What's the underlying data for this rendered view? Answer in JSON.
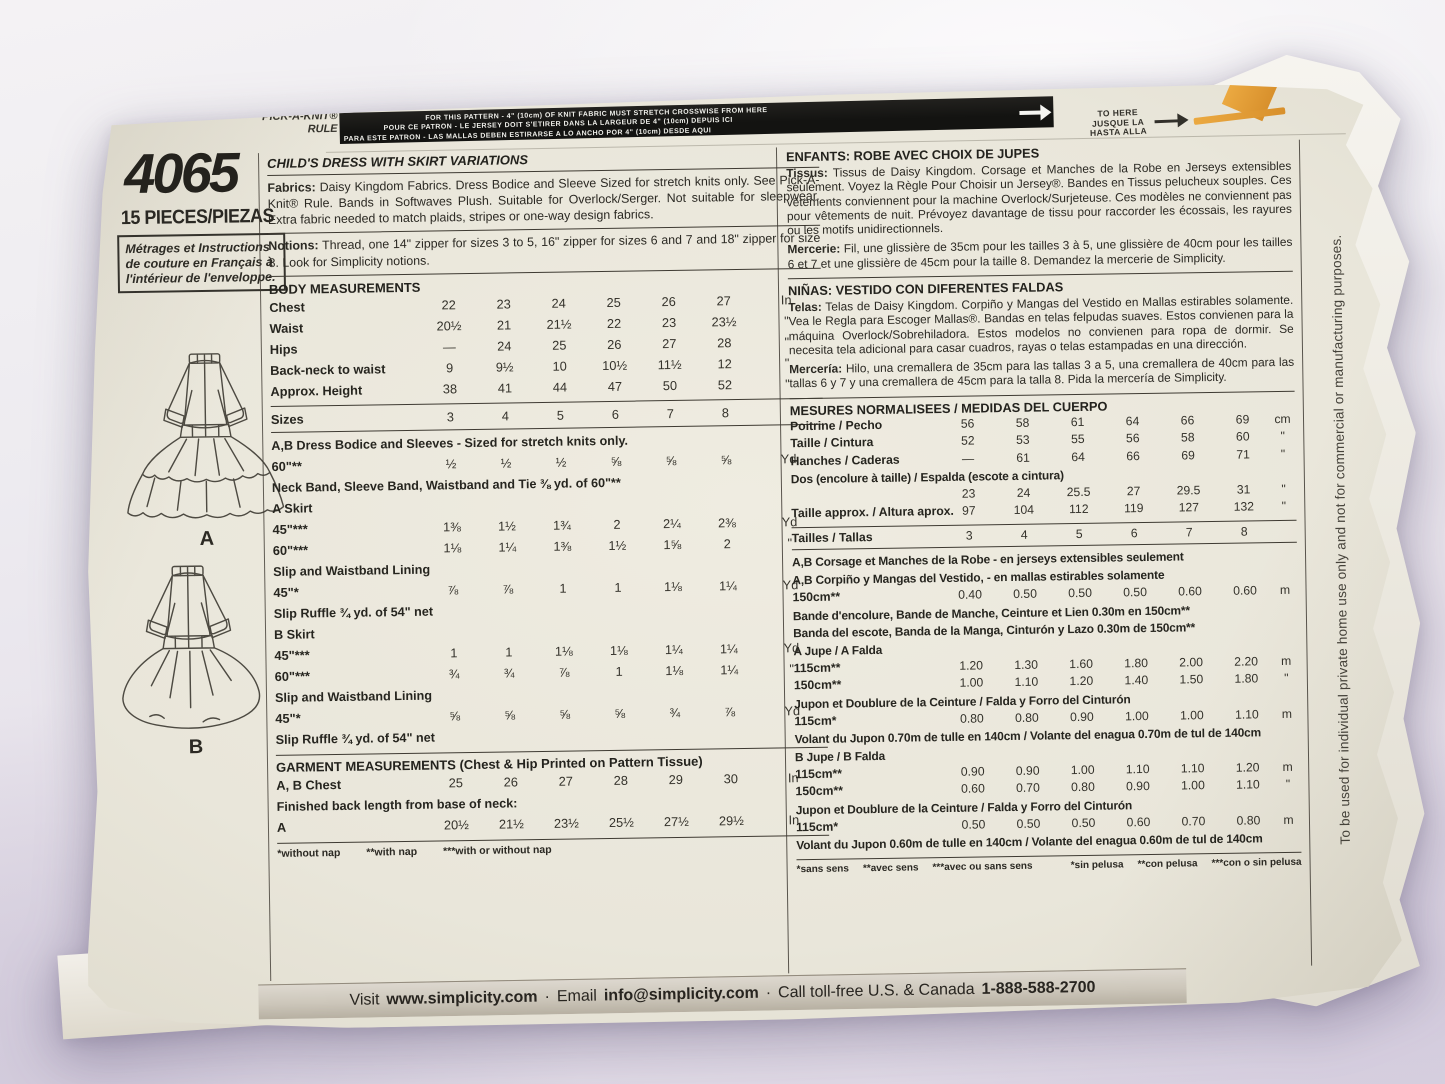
{
  "envelope": {
    "pattern_number": "4065",
    "pieces_text": "15 PIECES/PIEZAS",
    "french_insert_note": "Métrages et Instructions de couture en Français à l'intérieur de l'enveloppe.",
    "pick_a_knit": [
      "PICK-A-KNIT®",
      "RULE"
    ],
    "stretch_gauge_lines": [
      "FOR THIS PATTERN - 4\" (10cm) OF KNIT FABRIC MUST STRETCH CROSSWISE FROM HERE",
      "POUR CE PATRON - LE JERSEY DOIT S'ETIRER DANS LA LARGEUR DE 4\" (10cm) DEPUIS ICI",
      "PARA ESTE PATRON - LAS MALLAS DEBEN ESTIRARSE A LO ANCHO POR 4\" (10cm) DESDE AQUI"
    ],
    "to_here_lines": [
      "TO HERE",
      "JUSQUE LA",
      "HASTA ALLA"
    ],
    "views": [
      {
        "label": "A"
      },
      {
        "label": "B"
      }
    ],
    "side_note": "To be used for individual private home use only and not for commercial or manufacturing purposes.",
    "footer": {
      "visit_label": "Visit",
      "website": "www.simplicity.com",
      "separator": "·",
      "email_label": "Email",
      "email": "info@simplicity.com",
      "call_label": "Call toll-free U.S. & Canada",
      "phone": "1-888-588-2700"
    },
    "colors": {
      "paper": "#e9e6da",
      "ink": "#2e2c26",
      "sticker_orange": "#e8a33c",
      "fabric_background": "#e7e2ec"
    }
  },
  "english": {
    "title": "CHILD'S DRESS WITH SKIRT VARIATIONS",
    "fabrics_label": "Fabrics:",
    "fabrics_text": "Daisy Kingdom Fabrics. Dress Bodice and Sleeve Sized for stretch knits only. See Pick-A-Knit® Rule. Bands in Softwaves Plush. Suitable for Overlock/Serger. Not suitable for sleepwear. Extra fabric needed to match plaids, stripes or one-way design fabrics.",
    "notions_label": "Notions:",
    "notions_text": "Thread, one 14\" zipper for sizes 3 to 5, 16\" zipper for sizes 6 and 7 and 18\" zipper for size 8. Look for Simplicity notions.",
    "body_measurements": {
      "heading": "BODY MEASUREMENTS",
      "rows": [
        {
          "label": "Chest",
          "values": [
            "22",
            "23",
            "24",
            "25",
            "26",
            "27"
          ],
          "unit": "In"
        },
        {
          "label": "Waist",
          "values": [
            "20½",
            "21",
            "21½",
            "22",
            "23",
            "23½"
          ],
          "unit": "\""
        },
        {
          "label": "Hips",
          "values": [
            "—",
            "24",
            "25",
            "26",
            "27",
            "28"
          ],
          "unit": "\""
        },
        {
          "label": "Back-neck to waist",
          "values": [
            "9",
            "9½",
            "10",
            "10½",
            "11½",
            "12"
          ],
          "unit": "\""
        },
        {
          "label": "Approx. Height",
          "values": [
            "38",
            "41",
            "44",
            "47",
            "50",
            "52"
          ],
          "unit": "\""
        }
      ]
    },
    "sizes_row": {
      "label": "Sizes",
      "values": [
        "3",
        "4",
        "5",
        "6",
        "7",
        "8"
      ],
      "unit": ""
    },
    "yardage": {
      "bodice_heading": "A,B Dress Bodice and Sleeves - Sized for stretch knits only.",
      "bodice_row": {
        "label": "60\"**",
        "values": [
          "½",
          "½",
          "½",
          "⅝",
          "⅝",
          "⅝"
        ],
        "unit": "Yd"
      },
      "neck_band_note": "Neck Band, Sleeve Band, Waistband and Tie ⅜ yd. of 60\"**",
      "a_skirt_heading": "A Skirt",
      "a_skirt_45": {
        "label": "45\"***",
        "values": [
          "1⅜",
          "1½",
          "1¾",
          "2",
          "2¼",
          "2⅜"
        ],
        "unit": "Yd"
      },
      "a_skirt_60": {
        "label": "60\"***",
        "values": [
          "1⅛",
          "1¼",
          "1⅜",
          "1½",
          "1⅝",
          "2"
        ],
        "unit": "\""
      },
      "slip_heading_1": "Slip and Waistband Lining",
      "slip_45_1": {
        "label": "45\"*",
        "values": [
          "⅞",
          "⅞",
          "1",
          "1",
          "1⅛",
          "1¼"
        ],
        "unit": "Yd"
      },
      "slip_ruffle_note_1": "Slip Ruffle ¾ yd. of 54\" net",
      "b_skirt_heading": "B Skirt",
      "b_skirt_45": {
        "label": "45\"***",
        "values": [
          "1",
          "1",
          "1⅛",
          "1⅛",
          "1¼",
          "1¼"
        ],
        "unit": "Yd"
      },
      "b_skirt_60": {
        "label": "60\"***",
        "values": [
          "¾",
          "¾",
          "⅞",
          "1",
          "1⅛",
          "1¼"
        ],
        "unit": "\""
      },
      "slip_heading_2": "Slip and Waistband Lining",
      "slip_45_2": {
        "label": "45\"*",
        "values": [
          "⅝",
          "⅝",
          "⅝",
          "⅝",
          "¾",
          "⅞"
        ],
        "unit": "Yd"
      },
      "slip_ruffle_note_2": "Slip Ruffle ¾ yd. of 54\" net"
    },
    "garment": {
      "heading": "GARMENT MEASUREMENTS (Chest & Hip Printed on Pattern Tissue)",
      "chest_row": {
        "label": "A, B Chest",
        "values": [
          "25",
          "26",
          "27",
          "28",
          "29",
          "30"
        ],
        "unit": "In"
      },
      "back_length_note": "Finished back length from base of neck:",
      "a_row": {
        "label": "A",
        "values": [
          "20½",
          "21½",
          "23½",
          "25½",
          "27½",
          "29½"
        ],
        "unit": "In"
      }
    },
    "footnotes": [
      "*without nap",
      "**with nap",
      "***with or without nap"
    ]
  },
  "bilingual": {
    "fr_title": "ENFANTS: ROBE AVEC CHOIX DE JUPES",
    "tissus_label": "Tissus:",
    "tissus_text": "Tissus de Daisy Kingdom. Corsage et Manches de la Robe en Jerseys extensibles seulement. Voyez la Règle Pour Choisir un Jersey®. Bandes en Tissus pelucheux souples. Ces vêtements conviennent pour la machine Overlock/Surjeteuse. Ces modèles ne conviennent pas pour vêtements de nuit. Prévoyez davantage de tissu pour raccorder les écossais, les rayures ou les motifs unidirectionnels.",
    "mercerie_label": "Mercerie:",
    "mercerie_text": "Fil, une glissière de 35cm pour les tailles 3 à 5, une glissière de 40cm pour les tailles 6 et 7 et une glissière de 45cm pour la taille 8. Demandez la mercerie de Simplicity.",
    "es_title": "NIÑAS: VESTIDO CON DIFERENTES FALDAS",
    "telas_label": "Telas:",
    "telas_text": "Telas de Daisy Kingdom. Corpiño y Mangas del Vestido en Mallas estirables solamente. Vea le Regla para Escoger Mallas®. Bandas en telas felpudas suaves. Estos convienen para la máquina Overlock/Sobrehiladora. Estos modelos no convienen para ropa de dormir. Se necesita tela adicional para casar cuadros, rayas o telas estampadas en una dirección.",
    "merceria_label": "Mercería:",
    "merceria_text": "Hilo, una cremallera de 35cm para las tallas 3 a 5, una cremallera de 40cm para las tallas 6 y 7 y una cremallera de 45cm para la talla 8. Pida la mercería de Simplicity.",
    "mesures": {
      "heading": "MESURES NORMALISEES / MEDIDAS DEL CUERPO",
      "rows": [
        {
          "label": "Poitrine / Pecho",
          "values": [
            "56",
            "58",
            "61",
            "64",
            "66",
            "69"
          ],
          "unit": "cm"
        },
        {
          "label": "Taille / Cintura",
          "values": [
            "52",
            "53",
            "55",
            "56",
            "58",
            "60"
          ],
          "unit": "\""
        },
        {
          "label": "Hanches / Caderas",
          "values": [
            "—",
            "61",
            "64",
            "66",
            "69",
            "71"
          ],
          "unit": "\""
        }
      ],
      "dos_heading": "Dos (encolure à taille) / Espalda (escote a cintura)",
      "dos_row": {
        "label": "",
        "values": [
          "23",
          "24",
          "25.5",
          "27",
          "29.5",
          "31"
        ],
        "unit": "\""
      },
      "taille_approx_row": {
        "label": "Taille approx. / Altura aprox.",
        "values": [
          "97",
          "104",
          "112",
          "119",
          "127",
          "132"
        ],
        "unit": "\""
      },
      "tailles_row": {
        "label": "Tailles / Tallas",
        "values": [
          "3",
          "4",
          "5",
          "6",
          "7",
          "8"
        ],
        "unit": ""
      }
    },
    "metrage": {
      "corsage_fr": "A,B Corsage et Manches de la Robe - en jerseys extensibles seulement",
      "corsage_es": "A,B Corpiño y Mangas del Vestido, - en mallas estirables solamente",
      "corsage_150": {
        "label": "150cm**",
        "values": [
          "0.40",
          "0.50",
          "0.50",
          "0.50",
          "0.60",
          "0.60"
        ],
        "unit": "m"
      },
      "bande_fr": "Bande d'encolure, Bande de Manche, Ceinture et Lien 0.30m en 150cm**",
      "bande_es": "Banda del escote, Banda de la Manga, Cinturón y Lazo 0.30m de 150cm**",
      "a_jupe_heading": "A Jupe / A Falda",
      "a_115": {
        "label": "115cm**",
        "values": [
          "1.20",
          "1.30",
          "1.60",
          "1.80",
          "2.00",
          "2.20"
        ],
        "unit": "m"
      },
      "a_150": {
        "label": "150cm**",
        "values": [
          "1.00",
          "1.10",
          "1.20",
          "1.40",
          "1.50",
          "1.80"
        ],
        "unit": "\""
      },
      "jupon_heading_1": "Jupon et Doublure de la Ceinture / Falda y Forro del Cinturón",
      "jupon_115_1": {
        "label": "115cm*",
        "values": [
          "0.80",
          "0.80",
          "0.90",
          "1.00",
          "1.00",
          "1.10"
        ],
        "unit": "m"
      },
      "volant_note_1": "Volant du Jupon 0.70m de tulle en 140cm / Volante del enagua 0.70m de tul de 140cm",
      "b_jupe_heading": "B Jupe / B Falda",
      "b_115": {
        "label": "115cm**",
        "values": [
          "0.90",
          "0.90",
          "1.00",
          "1.10",
          "1.10",
          "1.20"
        ],
        "unit": "m"
      },
      "b_150": {
        "label": "150cm**",
        "values": [
          "0.60",
          "0.70",
          "0.80",
          "0.90",
          "1.00",
          "1.10"
        ],
        "unit": "\""
      },
      "jupon_heading_2": "Jupon et Doublure de la Ceinture / Falda y Forro del Cinturón",
      "jupon_115_2": {
        "label": "115cm*",
        "values": [
          "0.50",
          "0.50",
          "0.50",
          "0.60",
          "0.70",
          "0.80"
        ],
        "unit": "m"
      },
      "volant_note_2": "Volant du Jupon 0.60m de tulle en 140cm / Volante del enagua 0.60m de tul de 140cm"
    },
    "footnotes_fr": [
      "*sans sens",
      "**avec sens",
      "***avec ou sans sens"
    ],
    "footnotes_es": [
      "*sin pelusa",
      "**con pelusa",
      "***con o sin pelusa"
    ]
  }
}
